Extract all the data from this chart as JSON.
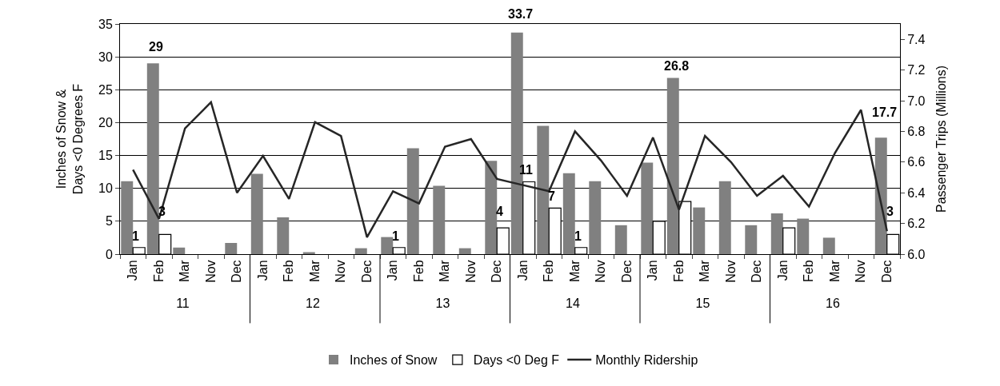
{
  "chart_data": {
    "type": "bar",
    "ylabel": "Inches of Snow &\nDays <0 Degrees F",
    "y2label": "Passenger Trips (Millions)",
    "categories": [
      "Jan",
      "Feb",
      "Mar",
      "Nov",
      "Dec",
      "Jan",
      "Feb",
      "Mar",
      "Nov",
      "Dec",
      "Jan",
      "Feb",
      "Mar",
      "Nov",
      "Dec",
      "Jan",
      "Feb",
      "Mar",
      "Nov",
      "Dec",
      "Jan",
      "Feb",
      "Mar",
      "Nov",
      "Dec",
      "Jan",
      "Feb",
      "Mar",
      "Nov",
      "Dec"
    ],
    "annotations": [
      "11",
      "12",
      "13",
      "14",
      "15",
      "16"
    ],
    "series": [
      {
        "name": "Inches of Snow",
        "color": "#808080",
        "values": [
          11.1,
          29,
          1.0,
          null,
          1.7,
          12.2,
          5.6,
          0.3,
          null,
          0.9,
          2.6,
          16.1,
          10.4,
          0.9,
          14.2,
          33.7,
          19.5,
          12.3,
          11.1,
          4.4,
          13.9,
          26.8,
          7.1,
          11.1,
          4.4,
          6.2,
          5.4,
          2.5,
          null,
          17.7
        ],
        "value_labels": [
          null,
          "29",
          null,
          null,
          null,
          null,
          null,
          null,
          null,
          null,
          null,
          null,
          null,
          null,
          null,
          "33.7",
          null,
          null,
          null,
          null,
          null,
          "26.8",
          null,
          null,
          null,
          null,
          null,
          null,
          null,
          "17.7"
        ]
      },
      {
        "name": "Days <0 Deg F",
        "color": "#ffffff",
        "values": [
          1,
          3,
          null,
          null,
          null,
          null,
          null,
          null,
          null,
          null,
          1,
          null,
          null,
          null,
          4,
          11,
          7,
          1,
          null,
          null,
          5,
          8,
          null,
          null,
          null,
          4,
          null,
          null,
          null,
          3
        ],
        "value_labels": [
          "1",
          "3",
          null,
          null,
          null,
          null,
          null,
          null,
          null,
          null,
          "1",
          null,
          null,
          null,
          "4",
          "11",
          "7",
          "1",
          null,
          null,
          null,
          null,
          null,
          null,
          null,
          null,
          null,
          null,
          null,
          "3"
        ]
      },
      {
        "name": "Monthly Ridership",
        "type": "line",
        "axis": "y2",
        "color": "#262626",
        "values": [
          6.55,
          6.23,
          6.82,
          6.99,
          6.4,
          6.64,
          6.36,
          6.86,
          6.77,
          6.11,
          6.41,
          6.33,
          6.7,
          6.75,
          6.49,
          6.45,
          6.41,
          6.8,
          6.61,
          6.38,
          6.76,
          6.29,
          6.77,
          6.6,
          6.38,
          6.51,
          6.31,
          6.66,
          6.94,
          6.15
        ]
      }
    ],
    "ylim": [
      0,
      35
    ],
    "yticks": [
      0,
      5,
      10,
      15,
      20,
      25,
      30,
      35
    ],
    "y2lim": [
      6.0,
      7.5
    ],
    "y2ticks": [
      {
        "value": 6.0,
        "label": "6.0"
      },
      6.2,
      6.4,
      6.6,
      6.8,
      {
        "value": 7.0,
        "label": "7.0"
      },
      7.2,
      7.4
    ],
    "grid": "y",
    "legend": "bottom",
    "marker": "none"
  }
}
